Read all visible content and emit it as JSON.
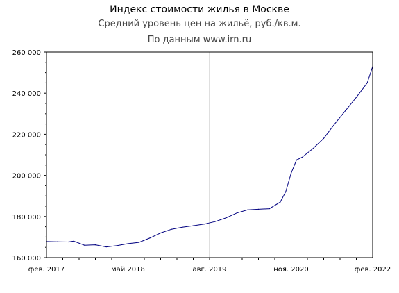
{
  "chart_data": {
    "type": "line",
    "title": "Индекс стоимости жилья в Москве",
    "subtitle": "Средний уровень цен на жильё, руб./кв.м.",
    "source": "По данным www.irn.ru",
    "xlabel": "",
    "ylabel": "",
    "ylim": [
      160000,
      260000
    ],
    "yticks": [
      160000,
      180000,
      200000,
      220000,
      240000,
      260000
    ],
    "ytick_labels": [
      "160 000",
      "180 000",
      "200 000",
      "220 000",
      "240 000",
      "260 000"
    ],
    "xlim": [
      "2017-02",
      "2022-02"
    ],
    "xticks": [
      "2017-02",
      "2018-05",
      "2019-08",
      "2020-11",
      "2022-02"
    ],
    "xtick_labels": [
      "фев. 2017",
      "май 2018",
      "авг. 2019",
      "ноя. 2020",
      "фев. 2022"
    ],
    "grid": true,
    "series": [
      {
        "color": "#000080",
        "x": [
          "2017-02",
          "2017-04",
          "2017-06",
          "2017-07",
          "2017-09",
          "2017-11",
          "2018-01",
          "2018-03",
          "2018-05",
          "2018-07",
          "2018-09",
          "2018-11",
          "2019-01",
          "2019-03",
          "2019-05",
          "2019-07",
          "2019-09",
          "2019-11",
          "2020-01",
          "2020-03",
          "2020-05",
          "2020-07",
          "2020-09",
          "2020-10",
          "2020-11",
          "2020-12",
          "2021-01",
          "2021-03",
          "2021-05",
          "2021-07",
          "2021-09",
          "2021-11",
          "2022-01",
          "2022-02"
        ],
        "values": [
          167800,
          167700,
          167600,
          168000,
          166000,
          166200,
          165200,
          165800,
          166800,
          167400,
          169500,
          172000,
          173800,
          174800,
          175500,
          176300,
          177500,
          179300,
          181700,
          183200,
          183500,
          183800,
          187000,
          192000,
          201000,
          207500,
          208800,
          213000,
          218000,
          225000,
          231500,
          238000,
          245000,
          253000
        ]
      }
    ]
  }
}
